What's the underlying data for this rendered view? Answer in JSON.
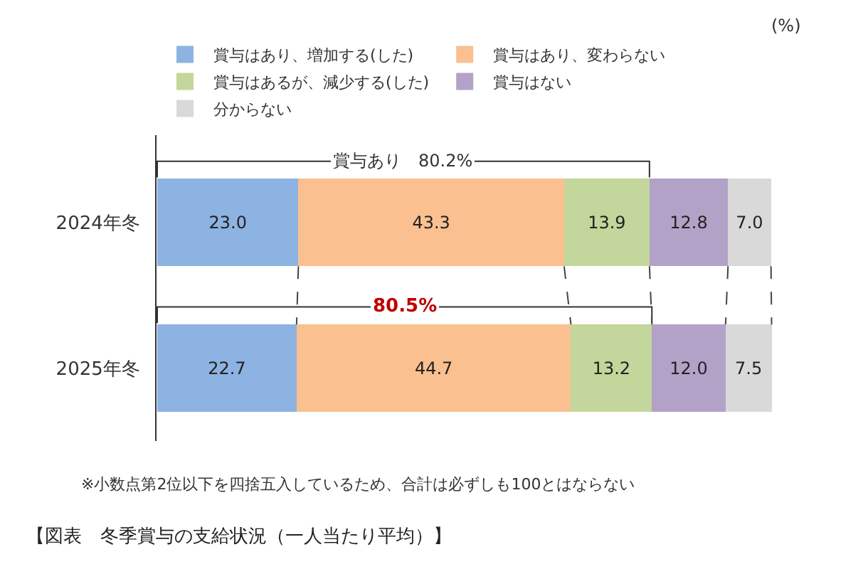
{
  "chart_data": {
    "type": "bar",
    "orientation": "horizontal",
    "stacked": true,
    "title": "【図表　冬季賞与の支給状況（一人当たり平均）】",
    "categories": [
      "2024年冬",
      "2025年冬"
    ],
    "series": [
      {
        "name": "賞与はあり、増加する(した)",
        "color": "#8db3e2",
        "values": [
          23.0,
          22.7
        ],
        "value_labels": [
          "23.0",
          "22.7"
        ]
      },
      {
        "name": "賞与はあり、変わらない",
        "color": "#fac090",
        "values": [
          43.3,
          44.7
        ],
        "value_labels": [
          "43.3",
          "44.7"
        ]
      },
      {
        "name": "賞与はあるが、減少する(した)",
        "color": "#c3d69b",
        "values": [
          13.9,
          13.2
        ],
        "value_labels": [
          "13.9",
          "13.2"
        ]
      },
      {
        "name": "賞与はない",
        "color": "#b3a2c7",
        "values": [
          12.8,
          12.0
        ],
        "value_labels": [
          "12.8",
          "12.0"
        ]
      },
      {
        "name": "分からない",
        "color": "#d9d9d9",
        "values": [
          7.0,
          7.5
        ],
        "value_labels": [
          "7.0",
          "7.5"
        ]
      }
    ],
    "tick_labels": "y",
    "legend": "top",
    "annotations": [
      "(%)",
      "賞与あり　80.2%",
      "80.5%",
      "※小数点第2位以下を四捨五入しているため、合計は必ずしも100とはならない"
    ]
  }
}
